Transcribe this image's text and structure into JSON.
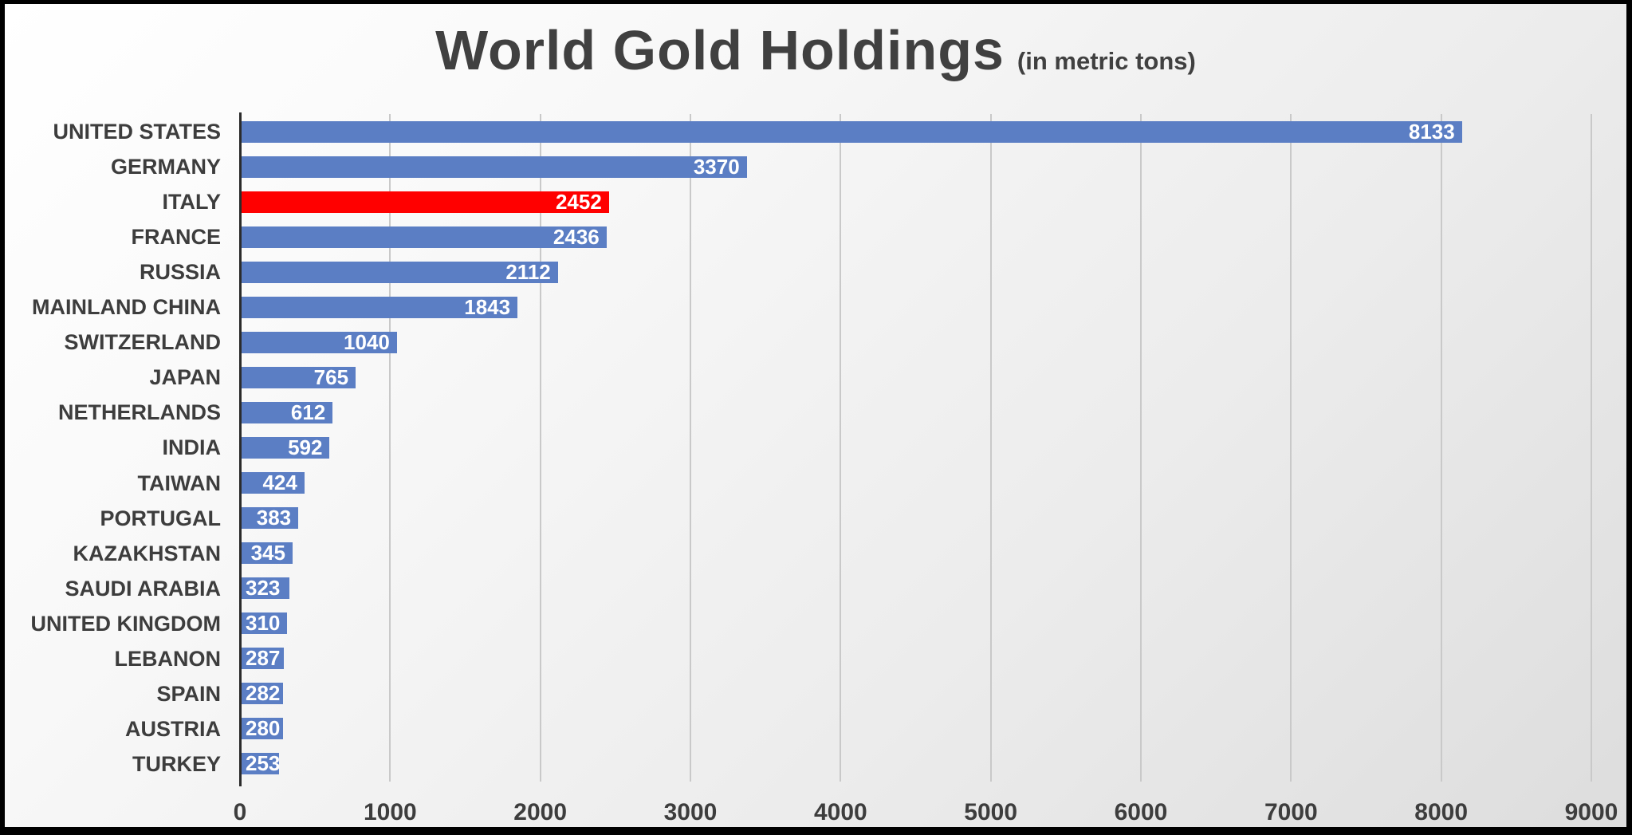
{
  "title": "World Gold Holdings",
  "subtitle": "(in metric tons)",
  "chart_data": {
    "type": "bar",
    "orientation": "horizontal",
    "title": "World Gold Holdings",
    "subtitle": "(in metric tons)",
    "xlabel": "",
    "ylabel": "",
    "categories": [
      "UNITED STATES",
      "GERMANY",
      "ITALY",
      "FRANCE",
      "RUSSIA",
      "MAINLAND CHINA",
      "SWITZERLAND",
      "JAPAN",
      "NETHERLANDS",
      "INDIA",
      "TAIWAN",
      "PORTUGAL",
      "KAZAKHSTAN",
      "SAUDI ARABIA",
      "UNITED KINGDOM",
      "LEBANON",
      "SPAIN",
      "AUSTRIA",
      "TURKEY"
    ],
    "values": [
      8133,
      3370,
      2452,
      2436,
      2112,
      1843,
      1040,
      765,
      612,
      592,
      424,
      383,
      345,
      323,
      310,
      287,
      282,
      280,
      253
    ],
    "highlight_category": "ITALY",
    "xlim": [
      0,
      9000
    ],
    "x_ticks": [
      0,
      1000,
      2000,
      3000,
      4000,
      5000,
      6000,
      7000,
      8000,
      9000
    ],
    "grid": true,
    "legend": "none",
    "value_labels": "inside-end",
    "colors": {
      "bar": "#5b7ec4",
      "highlight": "#ff0000",
      "value_label_text": "#ffffff",
      "category_text": "#3d3d3d",
      "tick_text": "#3d3d3d",
      "title_text": "#404040",
      "gridline": "#c9c9c9",
      "axis_line": "#2b2b2b"
    }
  }
}
